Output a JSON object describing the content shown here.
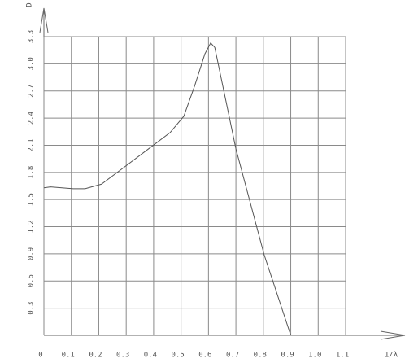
{
  "chart_data": {
    "type": "line",
    "y_label": "D",
    "x_label": "1/λ",
    "x": [
      0,
      0.024,
      0.107,
      0.15,
      0.21,
      0.285,
      0.39,
      0.46,
      0.51,
      0.55,
      0.587,
      0.608,
      0.623,
      0.7,
      0.803,
      0.9
    ],
    "series": [
      {
        "color": "#555555",
        "values": [
          1.63,
          1.64,
          1.62,
          1.62,
          1.67,
          1.84,
          2.08,
          2.24,
          2.42,
          2.76,
          3.11,
          3.23,
          3.18,
          2.06,
          0.89,
          0
        ]
      }
    ],
    "xlim": [
      0,
      1.1
    ],
    "ylim": [
      0,
      3.3
    ],
    "xticks": [
      0,
      0.1,
      0.2,
      0.3,
      0.4,
      0.5,
      0.6,
      0.7,
      0.8,
      0.9,
      {
        "value": 1,
        "label": "1.0"
      },
      1.1
    ],
    "yticks": [
      0.3,
      0.6,
      0.9,
      1.2,
      1.5,
      1.8,
      2.1,
      2.4,
      2.7,
      {
        "value": 3,
        "label": "3.0"
      },
      3.3
    ],
    "grid": true
  }
}
